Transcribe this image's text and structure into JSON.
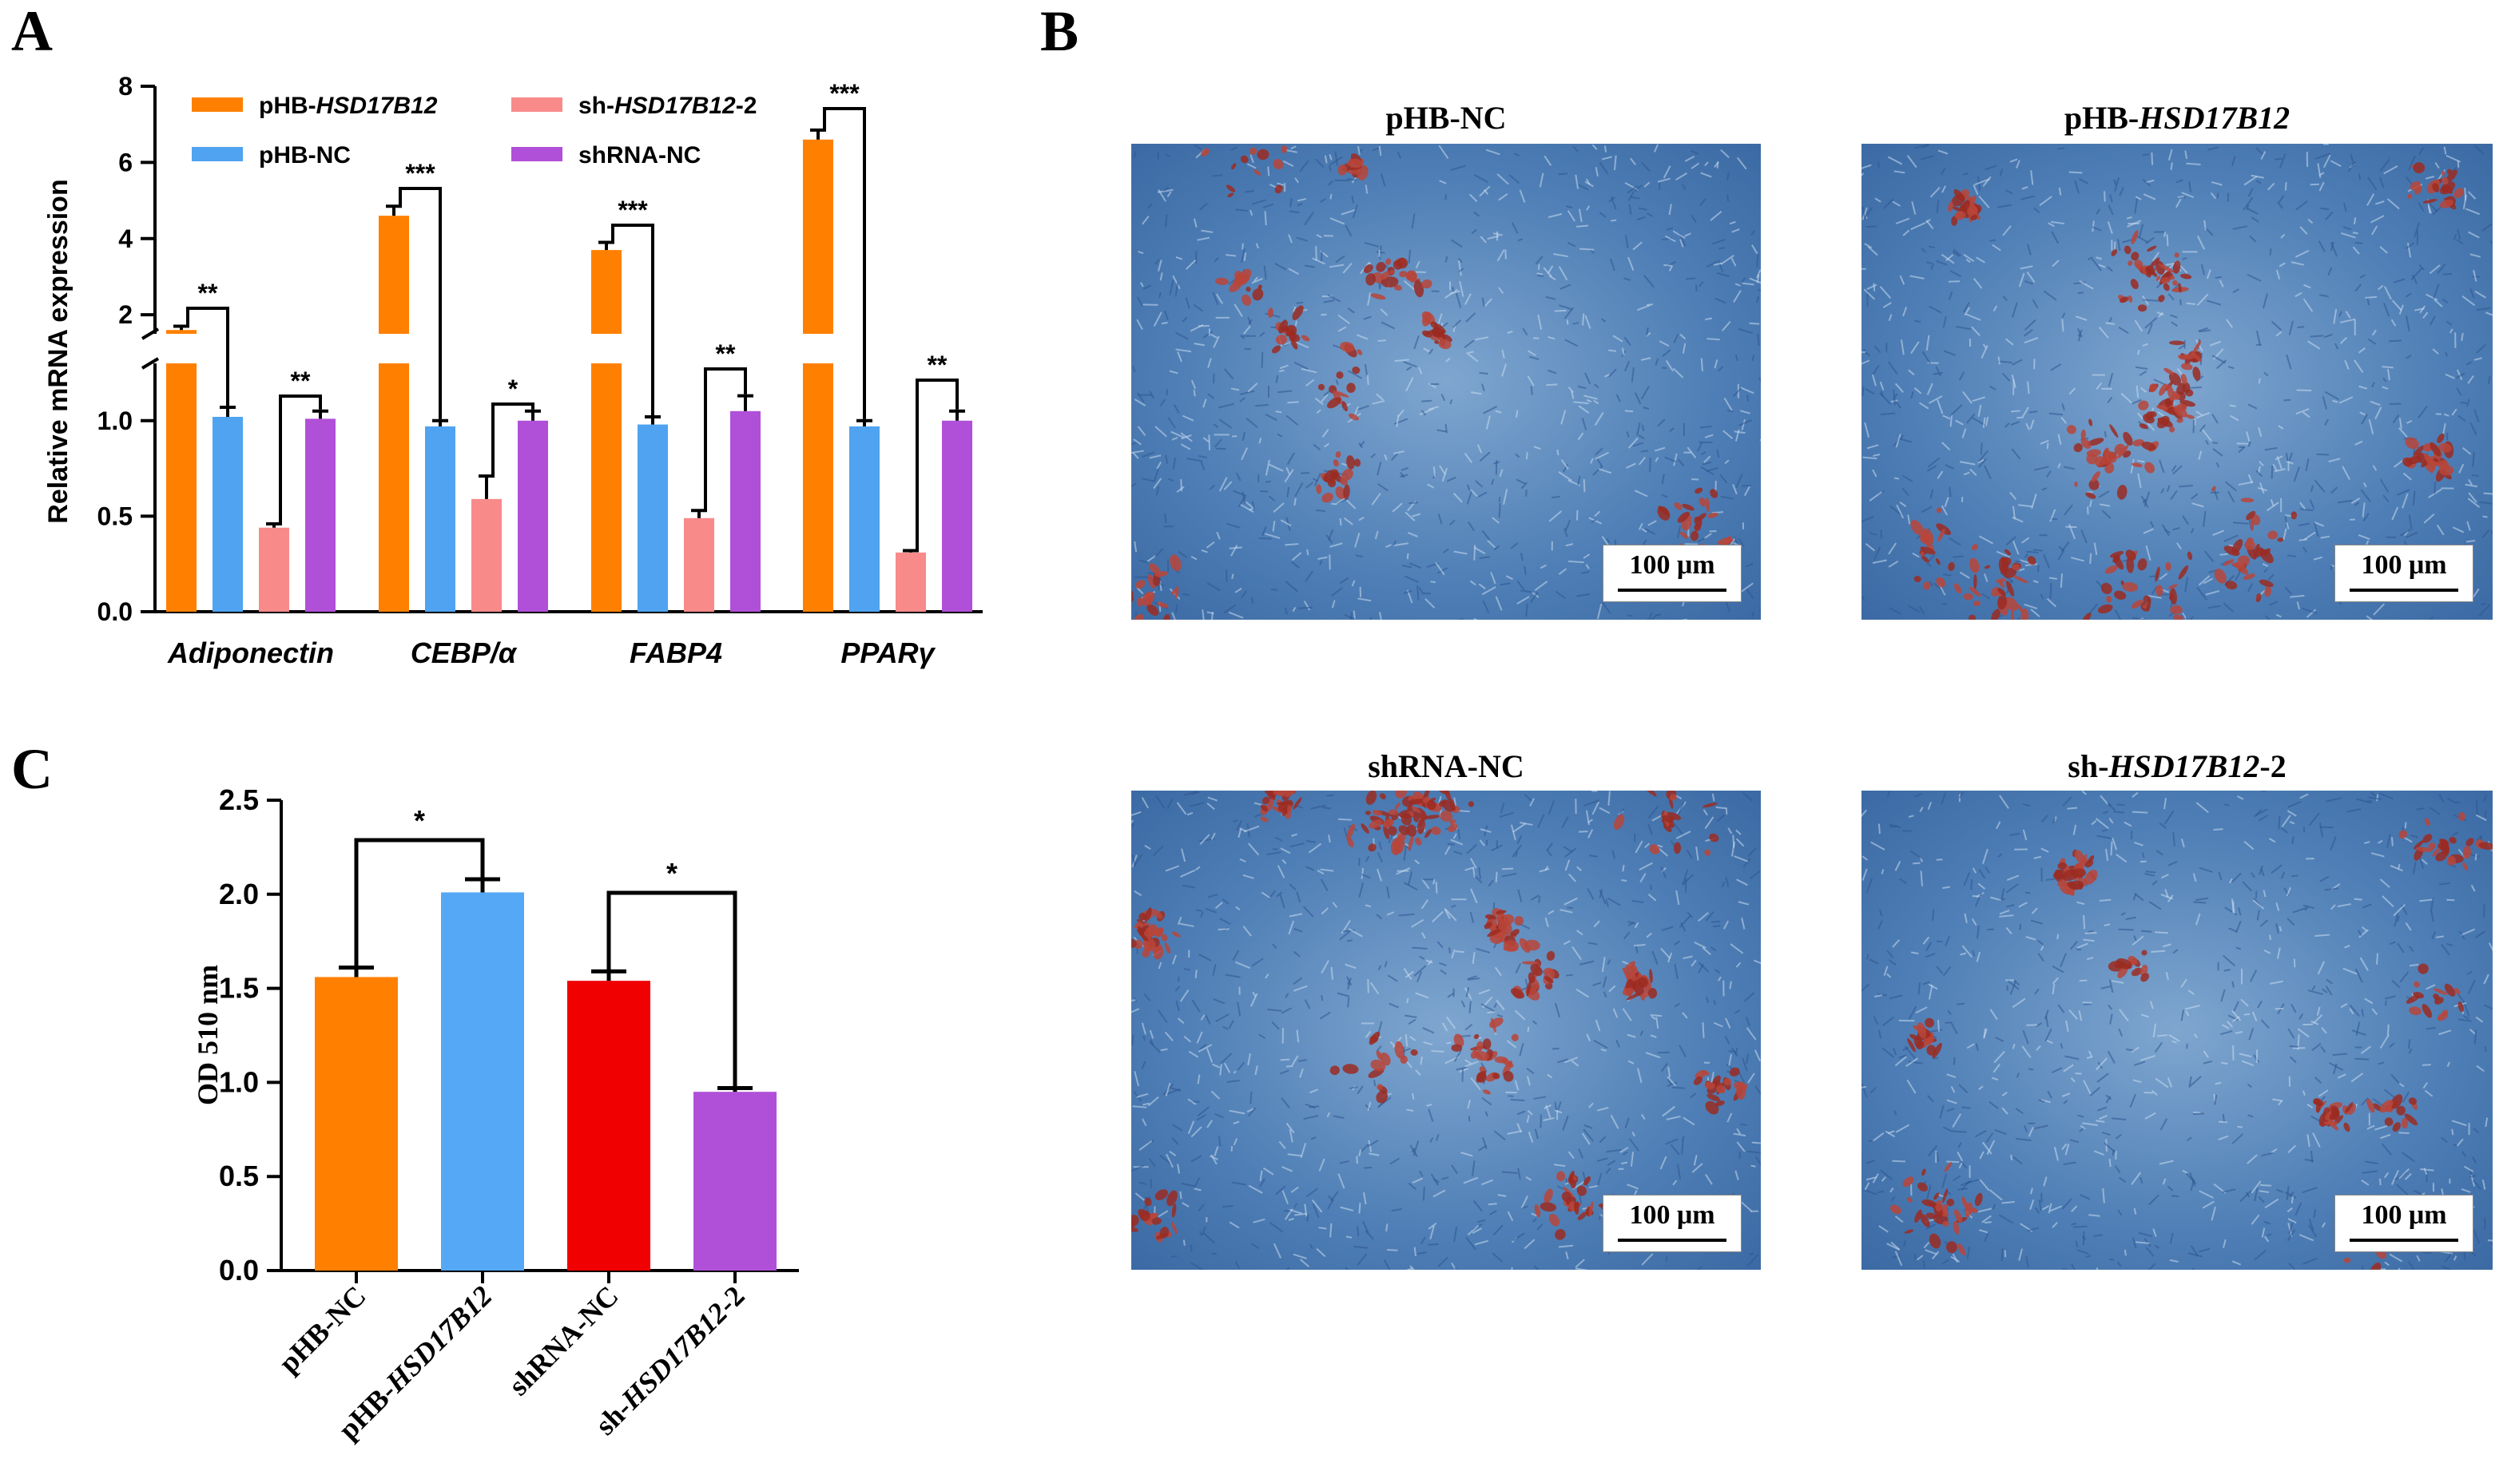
{
  "panels": {
    "a": "A",
    "b": "B",
    "c": "C"
  },
  "colors": {
    "pHB_HSD17B12": "#FF8000",
    "pHB_NC": "#4FA3F0",
    "sh_HSD17B12_2": "#F88A8A",
    "shRNA_NC": "#B04FD8",
    "c_pHB_NC": "#FF8000",
    "c_pHB_HSD17B12": "#55A8F5",
    "c_shRNA_NC": "#F00000",
    "c_sh_HSD17B12_2": "#B050D8"
  },
  "chart_data": [
    {
      "type": "bar",
      "ylabel": "Relative mRNA expression",
      "ylim": [
        0,
        8
      ],
      "y_axis_break": [
        1.5,
        1.5
      ],
      "yticks_lower": [
        "0.0",
        "0.5",
        "1.0"
      ],
      "yticks_upper": [
        "2",
        "4",
        "6",
        "8"
      ],
      "categories": [
        "Adiponectin",
        "CEBP/α",
        "FABP4",
        "PPARγ"
      ],
      "series": [
        {
          "name": "pHB-HSD17B12",
          "name_prefix": "pHB-",
          "name_italic": "HSD17B12",
          "name_suffix": "",
          "values": [
            1.6,
            4.6,
            3.7,
            6.6
          ],
          "errors": [
            0.1,
            0.25,
            0.2,
            0.25
          ]
        },
        {
          "name": "pHB-NC",
          "name_prefix": "pHB-NC",
          "name_italic": "",
          "name_suffix": "",
          "values": [
            1.02,
            0.97,
            0.98,
            0.97
          ],
          "errors": [
            0.05,
            0.03,
            0.04,
            0.03
          ]
        },
        {
          "name": "sh-HSD17B12-2",
          "name_prefix": "sh-",
          "name_italic": "HSD17B12",
          "name_suffix": "-2",
          "values": [
            0.44,
            0.59,
            0.49,
            0.31
          ],
          "errors": [
            0.02,
            0.12,
            0.04,
            0.01
          ]
        },
        {
          "name": "shRNA-NC",
          "name_prefix": "shRNA-NC",
          "name_italic": "",
          "name_suffix": "",
          "values": [
            1.01,
            1.0,
            1.05,
            1.0
          ],
          "errors": [
            0.04,
            0.05,
            0.08,
            0.05
          ]
        }
      ],
      "significance": [
        {
          "category": "Adiponectin",
          "pair": "pHB",
          "label": "**"
        },
        {
          "category": "Adiponectin",
          "pair": "sh",
          "label": "**"
        },
        {
          "category": "CEBP/α",
          "pair": "pHB",
          "label": "***"
        },
        {
          "category": "CEBP/α",
          "pair": "sh",
          "label": "*"
        },
        {
          "category": "FABP4",
          "pair": "pHB",
          "label": "***"
        },
        {
          "category": "FABP4",
          "pair": "sh",
          "label": "**"
        },
        {
          "category": "PPARγ",
          "pair": "pHB",
          "label": "***"
        },
        {
          "category": "PPARγ",
          "pair": "sh",
          "label": "**"
        }
      ]
    },
    {
      "type": "bar",
      "ylabel": "OD 510 nm",
      "ylim": [
        0,
        2.5
      ],
      "yticks": [
        "0.0",
        "0.5",
        "1.0",
        "1.5",
        "2.0",
        "2.5"
      ],
      "categories": [
        {
          "prefix": "pHB-NC",
          "italic": "",
          "suffix": ""
        },
        {
          "prefix": "pHB-",
          "italic": "HSD17B12",
          "suffix": ""
        },
        {
          "prefix": "shRNA-NC",
          "italic": "",
          "suffix": ""
        },
        {
          "prefix": "sh-",
          "italic": "HSD17B12",
          "suffix": "-2"
        }
      ],
      "values": [
        1.56,
        2.01,
        1.54,
        0.95
      ],
      "errors": [
        0.05,
        0.07,
        0.05,
        0.02
      ],
      "significance": [
        {
          "pair": [
            0,
            1
          ],
          "label": "*"
        },
        {
          "pair": [
            2,
            3
          ],
          "label": "*"
        }
      ]
    }
  ],
  "micrographs": [
    {
      "title_prefix": "pHB-NC",
      "title_italic": "",
      "title_suffix": "",
      "scalebar": "100 μm"
    },
    {
      "title_prefix": "pHB-",
      "title_italic": "HSD17B12",
      "title_suffix": "",
      "scalebar": "100 μm"
    },
    {
      "title_prefix": "shRNA-NC",
      "title_italic": "",
      "title_suffix": "",
      "scalebar": "100 μm"
    },
    {
      "title_prefix": "sh-",
      "title_italic": "HSD17B12",
      "title_suffix": "-2",
      "scalebar": "100 μm"
    }
  ]
}
